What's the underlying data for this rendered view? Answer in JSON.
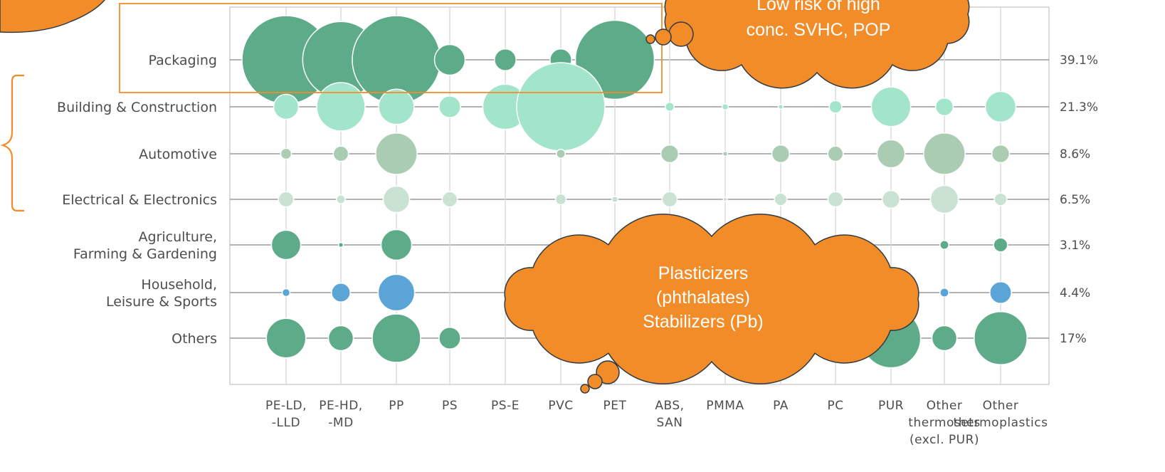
{
  "chart_data": {
    "type": "bubble",
    "rows": [
      "Packaging",
      "Building & Construction",
      "Automotive",
      "Electrical & Electronics",
      "Agriculture, Farming & Gardening",
      "Household, Leisure & Sports",
      "Others"
    ],
    "row_label_lines": [
      [
        "Packaging"
      ],
      [
        "Building & Construction"
      ],
      [
        "Automotive"
      ],
      [
        "Electrical & Electronics"
      ],
      [
        "Agriculture,",
        "Farming & Gardening"
      ],
      [
        "Household,",
        "Leisure & Sports"
      ],
      [
        "Others"
      ]
    ],
    "row_shares": [
      "39.1%",
      "21.3%",
      "8.6%",
      "6.5%",
      "3.1%",
      "4.4%",
      "17%"
    ],
    "columns": [
      "PE-LD, -LLD",
      "PE-HD, -MD",
      "PP",
      "PS",
      "PS-E",
      "PVC",
      "PET",
      "ABS, SAN",
      "PMMA",
      "PA",
      "PC",
      "PUR",
      "Other thermosets (excl. PUR)",
      "Other thermoplastics"
    ],
    "column_label_lines": [
      [
        "PE-LD,",
        "-LLD"
      ],
      [
        "PE-HD,",
        "-MD"
      ],
      [
        "PP"
      ],
      [
        "PS"
      ],
      [
        "PS-E"
      ],
      [
        "PVC"
      ],
      [
        "PET"
      ],
      [
        "ABS,",
        "SAN"
      ],
      [
        "PMMA"
      ],
      [
        "PA"
      ],
      [
        "PC"
      ],
      [
        "PUR"
      ],
      [
        "Other",
        "thermosets",
        "(excl. PUR)"
      ],
      [
        "Other",
        "thermoplastics"
      ]
    ],
    "size_unit": "relative demand (0-100)",
    "values": [
      [
        100,
        75,
        100,
        12,
        6,
        6,
        80,
        0,
        0,
        0,
        0,
        0,
        0,
        0
      ],
      [
        8,
        30,
        16,
        6,
        26,
        100,
        0,
        1,
        0.5,
        0.3,
        2,
        20,
        4,
        12
      ],
      [
        1.5,
        3,
        22,
        0,
        0,
        1,
        0,
        4,
        0.3,
        4,
        3,
        10,
        22,
        4
      ],
      [
        3,
        1,
        9,
        3,
        0,
        1.5,
        0.5,
        3,
        0.2,
        2,
        3,
        4,
        10,
        2
      ],
      [
        11,
        0.3,
        12,
        0,
        0,
        2.5,
        0,
        0,
        0,
        0,
        0,
        0,
        1,
        2.5
      ],
      [
        0.8,
        4.5,
        17,
        0,
        0,
        0,
        0,
        0,
        0,
        0,
        0,
        0,
        1,
        6
      ],
      [
        20,
        8,
        30,
        6,
        0,
        0,
        0,
        0,
        0,
        0,
        0,
        45,
        8,
        36
      ]
    ],
    "row_colors": [
      "#5eab8a",
      "#a2e5cb",
      "#a9ccb3",
      "#c9e2d2",
      "#5eab8a",
      "#5aa5d6",
      "#5eab8a"
    ],
    "grid": true,
    "legend": "none",
    "highlight_box": {
      "row": "Packaging",
      "columns": [
        "PE-LD, -LLD",
        "PE-HD, -MD",
        "PP",
        "PS",
        "PS-E",
        "PVC",
        "PET"
      ],
      "color": "#f28c28"
    },
    "annotations": [
      {
        "text_lines": [
          "Low risk of high",
          "conc. SVHC, POP"
        ],
        "color": "#f28c28",
        "points_to": "Packaging"
      },
      {
        "text_lines": [
          "Plasticizers",
          "(phthalates)",
          "Stabilizers (Pb)"
        ],
        "color": "#f28c28",
        "points_to": "PVC"
      },
      {
        "text_lines": [],
        "color": "#f28c28",
        "points_to": "Packaging"
      }
    ],
    "bracket": {
      "rows": [
        "Building & Construction",
        "Automotive",
        "Electrical & Electronics"
      ],
      "color": "#f28c28"
    }
  }
}
